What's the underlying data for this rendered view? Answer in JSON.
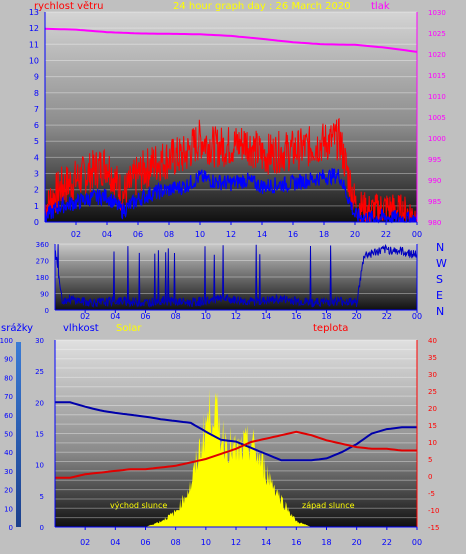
{
  "header": {
    "title": "24 hour graph day : 26 March 2020",
    "wind_label": "rychlost větru",
    "pressure_label": "tlak"
  },
  "compass": [
    "N",
    "W",
    "S",
    "E",
    "N"
  ],
  "lower_labels": {
    "rain": "srážky",
    "humidity": "vlhkost",
    "solar": "Solar",
    "temperature": "teplota",
    "sunrise": "východ slunce",
    "sunset": "západ slunce"
  },
  "colors": {
    "wind_gust": "#ff0000",
    "wind_avg": "#0000ff",
    "pressure": "#ff00ff",
    "direction": "#0000c0",
    "humidity": "#0000aa",
    "temperature": "#e00000",
    "solar": "#ffff00",
    "axis_text": "#0000ff",
    "pressure_axis": "#ff00ff",
    "temp_axis": "#ff0000"
  },
  "chart_data": [
    {
      "type": "line",
      "title": "24 hour graph day : 26 March 2020",
      "x_ticks": [
        "02",
        "04",
        "06",
        "08",
        "10",
        "12",
        "14",
        "16",
        "18",
        "20",
        "22",
        "00"
      ],
      "y_left": {
        "label": "rychlost větru",
        "ticks": [
          0,
          1,
          2,
          3,
          4,
          5,
          6,
          7,
          8,
          9,
          10,
          11,
          12,
          13
        ],
        "lim": [
          0,
          13
        ]
      },
      "y_right": {
        "label": "tlak",
        "ticks": [
          980,
          985,
          990,
          995,
          1000,
          1005,
          1010,
          1015,
          1020,
          1025,
          1030
        ],
        "lim": [
          980,
          1030
        ]
      },
      "series": [
        {
          "name": "gust",
          "axis": "left",
          "hours": [
            0,
            1,
            2,
            3,
            4,
            5,
            6,
            7,
            8,
            9,
            10,
            11,
            12,
            13,
            14,
            15,
            16,
            17,
            18,
            19,
            20,
            21,
            22,
            23,
            24
          ],
          "values": [
            0.8,
            2.0,
            2.5,
            3.0,
            3.5,
            1.5,
            2.8,
            3.5,
            3.8,
            4.0,
            5.0,
            4.5,
            4.6,
            4.8,
            4.0,
            4.2,
            4.3,
            4.5,
            4.8,
            5.0,
            1.0,
            0.6,
            0.8,
            0.6,
            0.3
          ]
        },
        {
          "name": "average",
          "axis": "left",
          "hours": [
            0,
            1,
            2,
            3,
            4,
            5,
            6,
            7,
            8,
            9,
            10,
            11,
            12,
            13,
            14,
            15,
            16,
            17,
            18,
            19,
            20,
            21,
            22,
            23,
            24
          ],
          "values": [
            0.3,
            1.0,
            1.2,
            1.5,
            1.6,
            0.7,
            1.4,
            1.8,
            2.0,
            2.2,
            2.8,
            2.5,
            2.4,
            2.6,
            2.2,
            2.3,
            2.4,
            2.6,
            2.8,
            2.9,
            0.4,
            0.2,
            0.3,
            0.2,
            0.1
          ]
        },
        {
          "name": "pressure",
          "axis": "right",
          "hours": [
            0,
            2,
            4,
            6,
            8,
            10,
            12,
            14,
            16,
            18,
            20,
            22,
            24
          ],
          "values": [
            1026.0,
            1025.8,
            1025.2,
            1024.9,
            1024.8,
            1024.7,
            1024.3,
            1023.6,
            1022.8,
            1022.3,
            1022.2,
            1021.5,
            1020.5
          ]
        }
      ]
    },
    {
      "type": "line",
      "x_ticks": [
        "02",
        "04",
        "06",
        "08",
        "10",
        "12",
        "14",
        "16",
        "18",
        "20",
        "22",
        "00"
      ],
      "y_left": {
        "ticks": [
          0,
          90,
          180,
          270,
          360
        ],
        "lim": [
          0,
          360
        ]
      },
      "series": [
        {
          "name": "direction",
          "hours": [
            0,
            0.5,
            1,
            2,
            3,
            4,
            5,
            6,
            7,
            8,
            9,
            10,
            11,
            12,
            13,
            14,
            15,
            16,
            17,
            18,
            19,
            20,
            20.5,
            21,
            22,
            23,
            24
          ],
          "values": [
            330,
            50,
            60,
            45,
            40,
            50,
            45,
            40,
            50,
            45,
            40,
            50,
            60,
            55,
            45,
            50,
            60,
            50,
            40,
            45,
            50,
            40,
            300,
            310,
            330,
            320,
            300
          ]
        }
      ]
    },
    {
      "type": "area",
      "x_ticks": [
        "02",
        "04",
        "06",
        "08",
        "10",
        "12",
        "14",
        "16",
        "18",
        "20",
        "22",
        "00"
      ],
      "axes": {
        "rain": {
          "label": "srážky",
          "ticks": [
            0,
            10,
            20,
            30,
            40,
            50,
            60,
            70,
            80,
            90,
            100
          ],
          "lim": [
            0,
            100
          ]
        },
        "humidity": {
          "label": "vlhkost",
          "ticks": [
            0,
            5,
            10,
            15,
            20,
            25,
            30
          ],
          "lim": [
            0,
            30
          ]
        },
        "temperature": {
          "label": "teplota",
          "ticks": [
            -15,
            -10,
            -5,
            0,
            5,
            10,
            15,
            20,
            25,
            30,
            35,
            40
          ],
          "lim": [
            -15,
            40
          ]
        }
      },
      "annotations": [
        "Solar",
        "východ slunce",
        "západ slunce"
      ],
      "series": [
        {
          "name": "humidity",
          "axis": "humidity",
          "hours": [
            0,
            1,
            2,
            3,
            4,
            5,
            6,
            7,
            8,
            9,
            10,
            11,
            12,
            13,
            14,
            15,
            16,
            17,
            18,
            19,
            20,
            21,
            22,
            23,
            24
          ],
          "values": [
            20.0,
            20.0,
            19.3,
            18.7,
            18.3,
            18.0,
            17.7,
            17.3,
            17.0,
            16.7,
            15.3,
            14.0,
            13.7,
            12.7,
            11.7,
            10.7,
            10.7,
            10.7,
            11.0,
            12.0,
            13.3,
            15.0,
            15.7,
            16.0,
            16.0
          ]
        },
        {
          "name": "temperature",
          "axis": "temperature",
          "hours": [
            0,
            1,
            2,
            3,
            4,
            5,
            6,
            7,
            8,
            9,
            10,
            11,
            12,
            13,
            14,
            15,
            16,
            17,
            18,
            19,
            20,
            21,
            22,
            23,
            24
          ],
          "values": [
            -0.5,
            -0.5,
            0.5,
            1.0,
            1.5,
            2.0,
            2.0,
            2.5,
            3.0,
            4.0,
            5.0,
            6.5,
            8.0,
            10.0,
            11.0,
            12.0,
            13.0,
            12.0,
            10.5,
            9.5,
            8.5,
            8.0,
            8.0,
            7.5,
            7.5
          ]
        },
        {
          "name": "solar",
          "axis": "rain",
          "hours": [
            0,
            6,
            7,
            8,
            9,
            10,
            10.5,
            11,
            12,
            13,
            14,
            15,
            16,
            17,
            24
          ],
          "values": [
            0,
            0,
            3,
            8,
            22,
            55,
            65,
            50,
            40,
            45,
            30,
            15,
            3,
            0,
            0
          ]
        }
      ]
    }
  ]
}
